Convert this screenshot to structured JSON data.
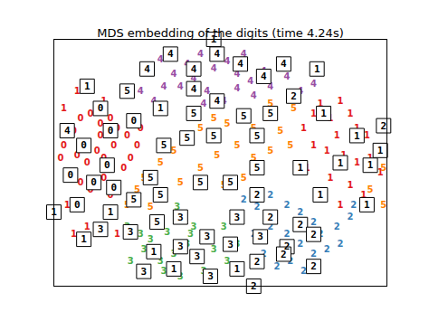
{
  "chart_data": {
    "type": "scatter",
    "title": "MDS embedding of the digits (time 4.24s)",
    "xlim": [
      0,
      1
    ],
    "ylim": [
      0,
      1
    ],
    "tick_labels": false,
    "grid": false,
    "series": [
      {
        "name": "0",
        "color": "#e41a1c",
        "x": [
          0.03,
          0.06,
          0.08,
          0.11,
          0.14,
          0.17,
          0.19,
          0.22,
          0.25,
          0.07,
          0.1,
          0.13,
          0.15,
          0.18,
          0.21,
          0.04,
          0.08,
          0.11,
          0.15,
          0.19,
          0.23,
          0.26,
          0.14,
          0.02,
          0.17
        ],
        "y": [
          0.57,
          0.63,
          0.68,
          0.7,
          0.66,
          0.68,
          0.64,
          0.61,
          0.57,
          0.53,
          0.5,
          0.55,
          0.52,
          0.57,
          0.48,
          0.46,
          0.42,
          0.39,
          0.44,
          0.41,
          0.52,
          0.64,
          0.61,
          0.52,
          0.37
        ]
      },
      {
        "name": "1",
        "color": "#e41a1c",
        "x": [
          0.75,
          0.78,
          0.8,
          0.83,
          0.86,
          0.89,
          0.91,
          0.94,
          0.85,
          0.82,
          0.87,
          0.91,
          0.95,
          0.98,
          0.78,
          0.83,
          0.89,
          0.93,
          0.86,
          0.76,
          0.07,
          0.03,
          0.15,
          0.1,
          0.06,
          0.19,
          0.04
        ],
        "y": [
          0.64,
          0.7,
          0.74,
          0.68,
          0.75,
          0.7,
          0.64,
          0.61,
          0.61,
          0.55,
          0.53,
          0.5,
          0.52,
          0.46,
          0.57,
          0.44,
          0.41,
          0.37,
          0.33,
          0.48,
          0.79,
          0.72,
          0.75,
          0.24,
          0.21,
          0.21,
          0.33
        ]
      },
      {
        "name": "2",
        "color": "#377eb8",
        "x": [
          0.57,
          0.61,
          0.65,
          0.7,
          0.74,
          0.78,
          0.8,
          0.85,
          0.89,
          0.65,
          0.7,
          0.74,
          0.78,
          0.82,
          0.6,
          0.63,
          0.67,
          0.71,
          0.75,
          0.86,
          0.55,
          0.9,
          0.29
        ],
        "y": [
          0.35,
          0.32,
          0.37,
          0.33,
          0.3,
          0.26,
          0.21,
          0.24,
          0.28,
          0.24,
          0.21,
          0.17,
          0.13,
          0.15,
          0.21,
          0.13,
          0.08,
          0.1,
          0.06,
          0.17,
          0.28,
          0.33,
          0.88
        ]
      },
      {
        "name": "3",
        "color": "#4daf4a",
        "x": [
          0.22,
          0.26,
          0.3,
          0.34,
          0.38,
          0.42,
          0.46,
          0.51,
          0.27,
          0.32,
          0.36,
          0.4,
          0.44,
          0.48,
          0.52,
          0.33,
          0.38,
          0.23,
          0.55,
          0.45,
          0.37,
          0.29,
          0.41
        ],
        "y": [
          0.24,
          0.21,
          0.26,
          0.22,
          0.28,
          0.24,
          0.21,
          0.24,
          0.15,
          0.1,
          0.13,
          0.17,
          0.11,
          0.15,
          0.1,
          0.06,
          0.04,
          0.1,
          0.17,
          0.06,
          0.32,
          0.19,
          0.21
        ]
      },
      {
        "name": "4",
        "color": "#984ea3",
        "x": [
          0.27,
          0.32,
          0.36,
          0.4,
          0.44,
          0.48,
          0.52,
          0.55,
          0.59,
          0.63,
          0.65,
          0.7,
          0.74,
          0.78,
          0.38,
          0.42,
          0.46,
          0.51,
          0.55,
          0.6,
          0.33,
          0.26,
          0.3,
          0.68,
          0.57,
          0.45
        ],
        "y": [
          0.89,
          0.92,
          0.86,
          0.9,
          0.94,
          0.88,
          0.91,
          0.86,
          0.83,
          0.87,
          0.81,
          0.85,
          0.79,
          0.82,
          0.81,
          0.84,
          0.79,
          0.75,
          0.8,
          0.77,
          0.81,
          0.79,
          0.75,
          0.9,
          0.94,
          0.74
        ]
      },
      {
        "name": "5",
        "color": "#ff7f00",
        "x": [
          0.25,
          0.27,
          0.32,
          0.36,
          0.4,
          0.44,
          0.48,
          0.52,
          0.56,
          0.6,
          0.64,
          0.68,
          0.71,
          0.65,
          0.6,
          0.55,
          0.49,
          0.44,
          0.38,
          0.33,
          0.29,
          0.22,
          0.65,
          0.57,
          0.51,
          0.97,
          0.99,
          0.95,
          0.99,
          0.72
        ],
        "y": [
          0.39,
          0.44,
          0.5,
          0.55,
          0.61,
          0.64,
          0.68,
          0.66,
          0.7,
          0.64,
          0.68,
          0.63,
          0.57,
          0.55,
          0.52,
          0.57,
          0.53,
          0.48,
          0.42,
          0.35,
          0.32,
          0.33,
          0.74,
          0.44,
          0.41,
          0.55,
          0.48,
          0.39,
          0.33,
          0.72
        ]
      }
    ],
    "thumbnails": {
      "x": [
        0.48,
        0.28,
        0.35,
        0.42,
        0.49,
        0.56,
        0.63,
        0.69,
        0.79,
        0.1,
        0.22,
        0.42,
        0.49,
        0.72,
        0.32,
        0.14,
        0.24,
        0.42,
        0.65,
        0.57,
        0.81,
        0.04,
        0.17,
        0.4,
        0.48,
        0.61,
        0.91,
        0.99,
        0.09,
        0.33,
        0.98,
        0.05,
        0.16,
        0.29,
        0.61,
        0.74,
        0.86,
        0.95,
        0.12,
        0.18,
        0.44,
        0.53,
        0.61,
        0.8,
        0.07,
        0.24,
        0.32,
        0.94,
        0.0,
        0.17,
        0.38,
        0.55,
        0.74,
        0.31,
        0.65,
        0.14,
        0.23,
        0.46,
        0.62,
        0.78,
        0.09,
        0.38,
        0.53,
        0.7,
        0.3,
        0.43,
        0.27,
        0.36,
        0.47,
        0.55,
        0.61,
        0.78,
        0.6,
        0.69
      ],
      "y": [
        1.0,
        0.88,
        0.94,
        0.88,
        0.94,
        0.9,
        0.85,
        0.9,
        0.88,
        0.81,
        0.79,
        0.8,
        0.75,
        0.77,
        0.72,
        0.72,
        0.67,
        0.7,
        0.7,
        0.69,
        0.7,
        0.63,
        0.63,
        0.6,
        0.61,
        0.61,
        0.61,
        0.65,
        0.57,
        0.57,
        0.55,
        0.45,
        0.49,
        0.44,
        0.48,
        0.48,
        0.5,
        0.49,
        0.42,
        0.4,
        0.42,
        0.42,
        0.37,
        0.37,
        0.33,
        0.35,
        0.37,
        0.33,
        0.3,
        0.3,
        0.28,
        0.28,
        0.25,
        0.26,
        0.28,
        0.23,
        0.22,
        0.2,
        0.2,
        0.21,
        0.19,
        0.16,
        0.17,
        0.16,
        0.14,
        0.12,
        0.06,
        0.07,
        0.04,
        0.07,
        0.1,
        0.08,
        0.0,
        0.13
      ],
      "labels": [
        "1",
        "4",
        "4",
        "4",
        "4",
        "4",
        "4",
        "4",
        "1",
        "1",
        "5",
        "4",
        "4",
        "2",
        "1",
        "0",
        "0",
        "5",
        "5",
        "5",
        "1",
        "4",
        "0",
        "5",
        "5",
        "5",
        "1",
        "2",
        "0",
        "5",
        "1",
        "0",
        "0",
        "5",
        "5",
        "1",
        "1",
        "1",
        "0",
        "0",
        "5",
        "5",
        "2",
        "1",
        "0",
        "5",
        "5",
        "1",
        "1",
        "1",
        "3",
        "3",
        "2",
        "5",
        "2",
        "3",
        "3",
        "3",
        "3",
        "2",
        "1",
        "3",
        "3",
        "2",
        "1",
        "3",
        "3",
        "1",
        "3",
        "1",
        "2",
        "2",
        "2",
        "2"
      ]
    }
  }
}
